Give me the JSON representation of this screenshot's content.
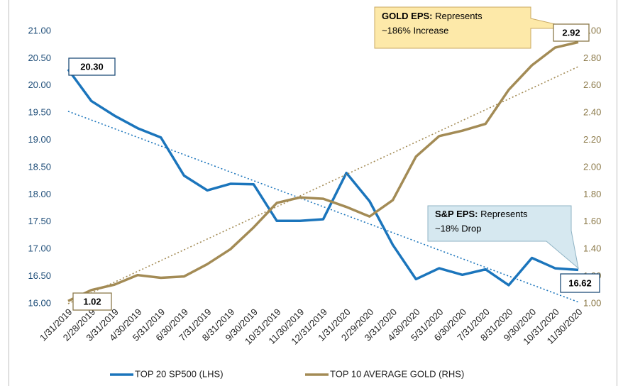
{
  "chart_data": {
    "type": "line",
    "categories": [
      "1/31/2019",
      "2/28/2019",
      "3/31/2019",
      "4/30/2019",
      "5/31/2019",
      "6/30/2019",
      "7/31/2019",
      "8/31/2019",
      "9/30/2019",
      "10/31/2019",
      "11/30/2019",
      "12/31/2019",
      "1/31/2020",
      "2/29/2020",
      "3/31/2020",
      "4/30/2020",
      "5/31/2020",
      "6/30/2020",
      "7/31/2020",
      "8/31/2020",
      "9/30/2020",
      "10/31/2020",
      "11/30/2020"
    ],
    "series": [
      {
        "name": "TOP 20 SP500 (LHS)",
        "color": "#1b75bc",
        "axis": "y",
        "values": [
          20.3,
          19.72,
          19.45,
          19.22,
          19.05,
          18.35,
          18.08,
          18.2,
          18.19,
          17.52,
          17.52,
          17.55,
          18.4,
          17.88,
          17.08,
          16.45,
          16.65,
          16.53,
          16.63,
          16.34,
          16.84,
          16.65,
          16.62
        ],
        "value_labels": [
          "20.30",
          null,
          null,
          null,
          null,
          null,
          null,
          null,
          null,
          null,
          null,
          null,
          null,
          null,
          null,
          null,
          null,
          null,
          null,
          null,
          null,
          null,
          "16.62"
        ],
        "trendline": [
          19.53,
          16.03
        ]
      },
      {
        "name": "TOP 10 AVERAGE GOLD (RHS)",
        "color": "#a38b55",
        "axis": "y2",
        "values": [
          1.02,
          1.1,
          1.14,
          1.21,
          1.19,
          1.2,
          1.29,
          1.4,
          1.56,
          1.74,
          1.78,
          1.77,
          1.71,
          1.64,
          1.76,
          2.08,
          2.23,
          2.27,
          2.32,
          2.57,
          2.75,
          2.88,
          2.92
        ],
        "value_labels": [
          "1.02",
          null,
          null,
          null,
          null,
          null,
          null,
          null,
          null,
          null,
          null,
          null,
          null,
          null,
          null,
          null,
          null,
          null,
          null,
          null,
          null,
          null,
          "2.92"
        ],
        "trendline": [
          1.0,
          2.74
        ]
      }
    ],
    "ylim": [
      16,
      21
    ],
    "yticks": [
      {
        "value": 16,
        "label": "16.00"
      },
      {
        "value": 16.5,
        "label": "16.50"
      },
      {
        "value": 17,
        "label": "17.00"
      },
      {
        "value": 17.5,
        "label": "17.50"
      },
      {
        "value": 18,
        "label": "18.00"
      },
      {
        "value": 18.5,
        "label": "18.50"
      },
      {
        "value": 19,
        "label": "19.00"
      },
      {
        "value": 19.5,
        "label": "19.50"
      },
      {
        "value": 20,
        "label": "20.00"
      },
      {
        "value": 20.5,
        "label": "20.50"
      },
      {
        "value": 21,
        "label": "21.00"
      }
    ],
    "y2lim": [
      1,
      3
    ],
    "y2ticks": [
      {
        "value": 1,
        "label": "1.00"
      },
      {
        "value": 1.2,
        "label": "1.20"
      },
      {
        "value": 1.4,
        "label": "1.40"
      },
      {
        "value": 1.6,
        "label": "1.60"
      },
      {
        "value": 1.8,
        "label": "1.80"
      },
      {
        "value": 2,
        "label": "2.00"
      },
      {
        "value": 2.2,
        "label": "2.20"
      },
      {
        "value": 2.4,
        "label": "2.40"
      },
      {
        "value": 2.6,
        "label": "2.60"
      },
      {
        "value": 2.8,
        "label": "2.80"
      },
      {
        "value": 3,
        "label": "3.00"
      }
    ],
    "annotations": [
      {
        "bold": "GOLD EPS:",
        "line1": "Represents",
        "line2": "~186% Increase"
      },
      {
        "bold": "S&P EPS:",
        "line1": "Represents",
        "line2": "~18% Drop"
      }
    ],
    "legend": "bottom"
  }
}
